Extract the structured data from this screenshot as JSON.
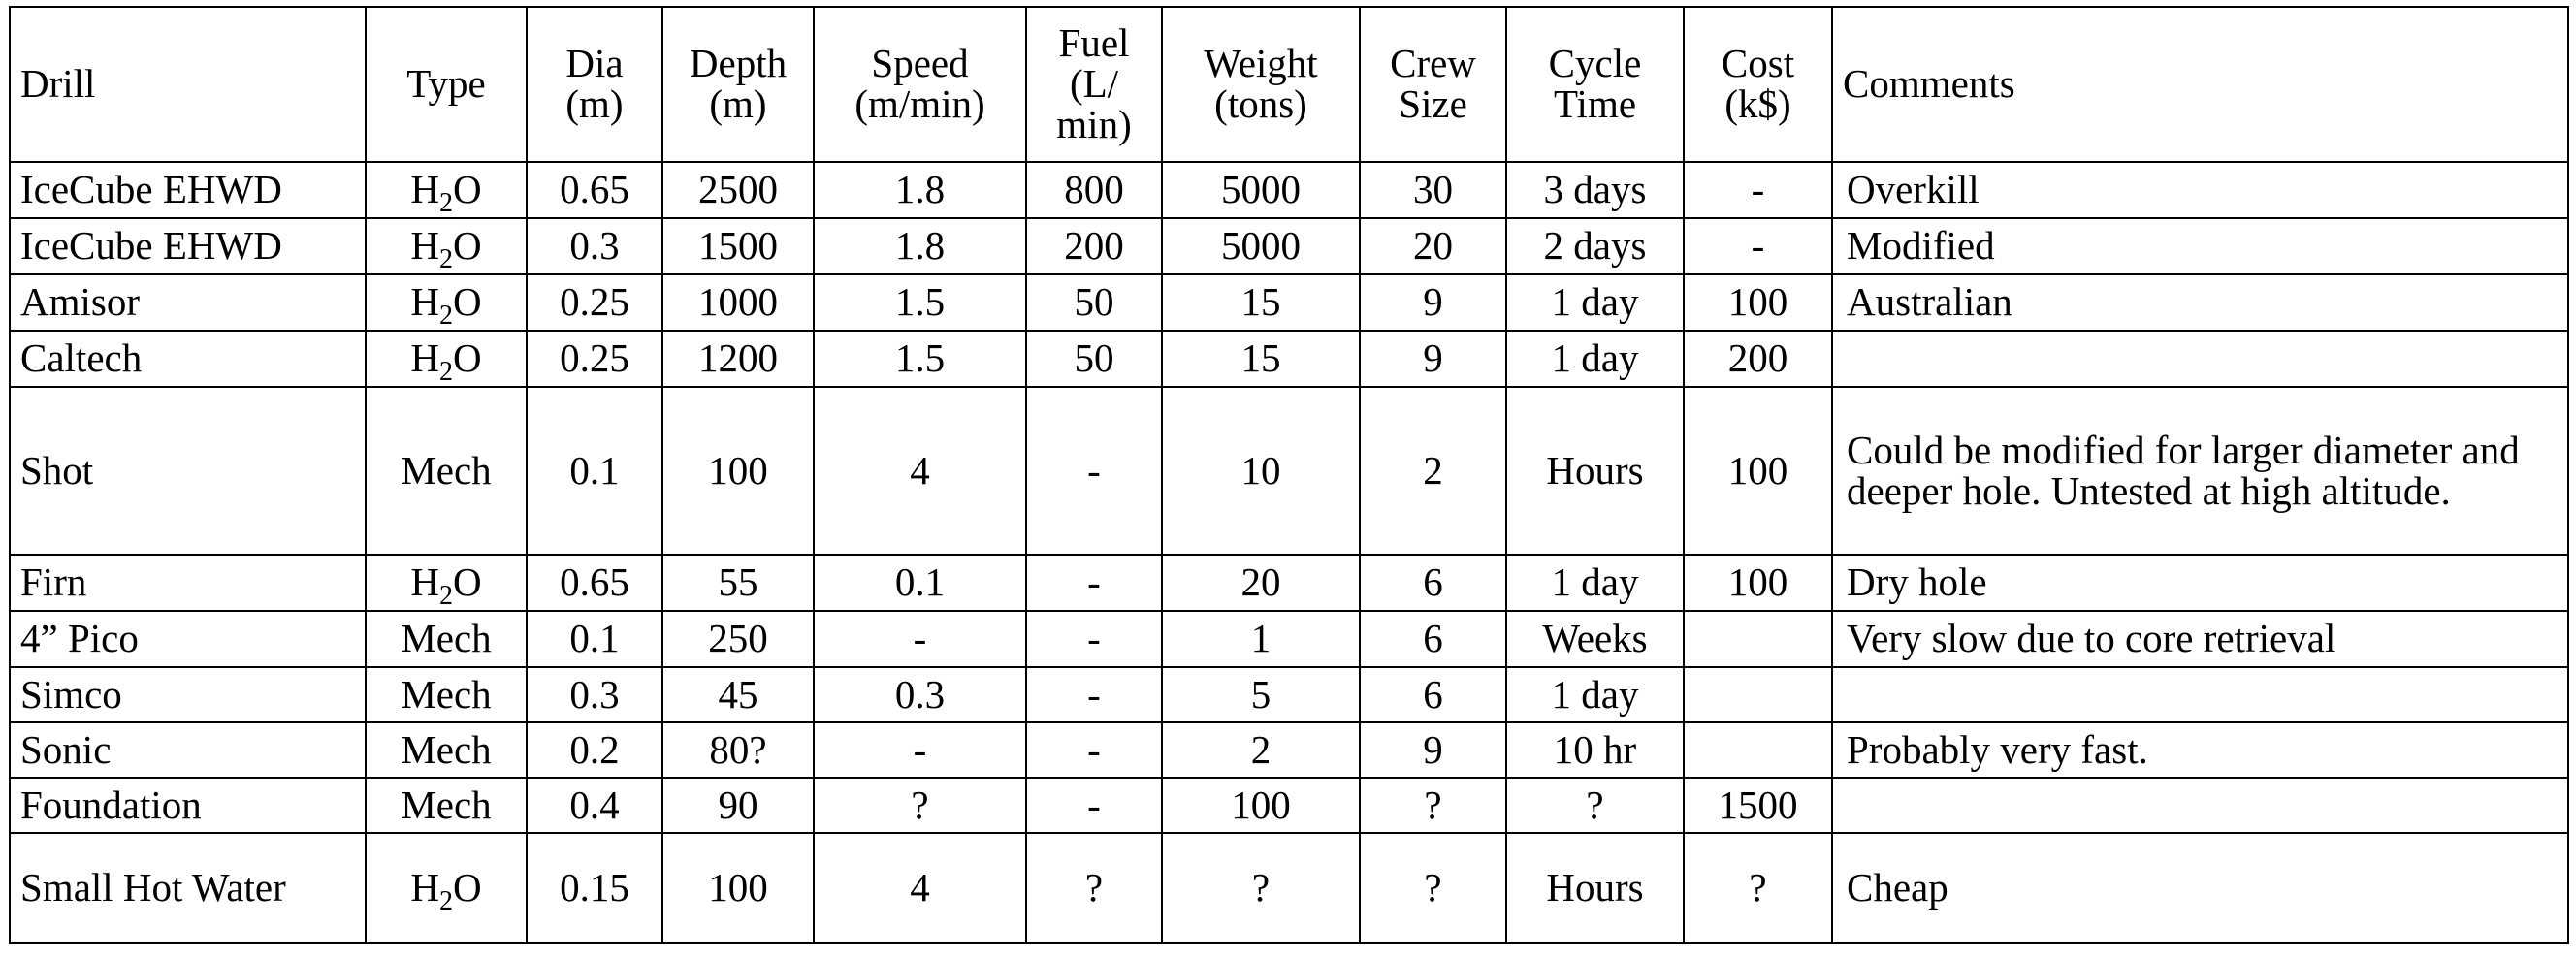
{
  "headers": [
    "Drill",
    "Type",
    "Dia\n(m)",
    "Depth\n(m)",
    "Speed\n(m/min)",
    "Fuel\n(L/\nmin)",
    "Weight\n(tons)",
    "Crew\nSize",
    "Cycle\nTime",
    "Cost\n(k$)",
    "Comments"
  ],
  "type_h2o": {
    "main": "H",
    "sub": "2",
    "tail": "O"
  },
  "rows": [
    {
      "drill": "IceCube EHWD",
      "type": "H2O",
      "dia": "0.65",
      "depth": "2500",
      "speed": "1.8",
      "fuel": "800",
      "weight": "5000",
      "crew": "30",
      "cycle": "3 days",
      "cost": "-",
      "comments": "Overkill"
    },
    {
      "drill": "IceCube EHWD",
      "type": "H2O",
      "dia": "0.3",
      "depth": "1500",
      "speed": "1.8",
      "fuel": "200",
      "weight": "5000",
      "crew": "20",
      "cycle": "2 days",
      "cost": "-",
      "comments": "Modified"
    },
    {
      "drill": "Amisor",
      "type": "H2O",
      "dia": "0.25",
      "depth": "1000",
      "speed": "1.5",
      "fuel": "50",
      "weight": "15",
      "crew": "9",
      "cycle": "1 day",
      "cost": "100",
      "comments": "Australian"
    },
    {
      "drill": "Caltech",
      "type": "H2O",
      "dia": "0.25",
      "depth": "1200",
      "speed": "1.5",
      "fuel": "50",
      "weight": "15",
      "crew": "9",
      "cycle": "1 day",
      "cost": "200",
      "comments": ""
    },
    {
      "drill": "Shot",
      "type": "Mech",
      "dia": "0.1",
      "depth": "100",
      "speed": "4",
      "fuel": "-",
      "weight": "10",
      "crew": "2",
      "cycle": "Hours",
      "cost": "100",
      "comments": "Could be modified for larger diameter and deeper hole.  Untested at high altitude."
    },
    {
      "drill": "Firn",
      "type": "H2O",
      "dia": "0.65",
      "depth": "55",
      "speed": "0.1",
      "fuel": "-",
      "weight": "20",
      "crew": "6",
      "cycle": "1 day",
      "cost": "100",
      "comments": "Dry hole"
    },
    {
      "drill": "4” Pico",
      "type": "Mech",
      "dia": "0.1",
      "depth": "250",
      "speed": "-",
      "fuel": "-",
      "weight": "1",
      "crew": "6",
      "cycle": "Weeks",
      "cost": "",
      "comments": "Very slow due to core retrieval"
    },
    {
      "drill": "Simco",
      "type": "Mech",
      "dia": "0.3",
      "depth": "45",
      "speed": "0.3",
      "fuel": "-",
      "weight": "5",
      "crew": "6",
      "cycle": "1 day",
      "cost": "",
      "comments": ""
    },
    {
      "drill": "Sonic",
      "type": "Mech",
      "dia": "0.2",
      "depth": "80?",
      "speed": "-",
      "fuel": "-",
      "weight": "2",
      "crew": "9",
      "cycle": "10 hr",
      "cost": "",
      "comments": "Probably very fast."
    },
    {
      "drill": "Foundation",
      "type": "Mech",
      "dia": "0.4",
      "depth": "90",
      "speed": "?",
      "fuel": "-",
      "weight": "100",
      "crew": "?",
      "cycle": "?",
      "cost": "1500",
      "comments": ""
    },
    {
      "drill": "Small Hot Water",
      "type": "H2O",
      "dia": "0.15",
      "depth": "100",
      "speed": "4",
      "fuel": "?",
      "weight": "?",
      "crew": "?",
      "cycle": "Hours",
      "cost": "?",
      "comments": "Cheap"
    }
  ]
}
